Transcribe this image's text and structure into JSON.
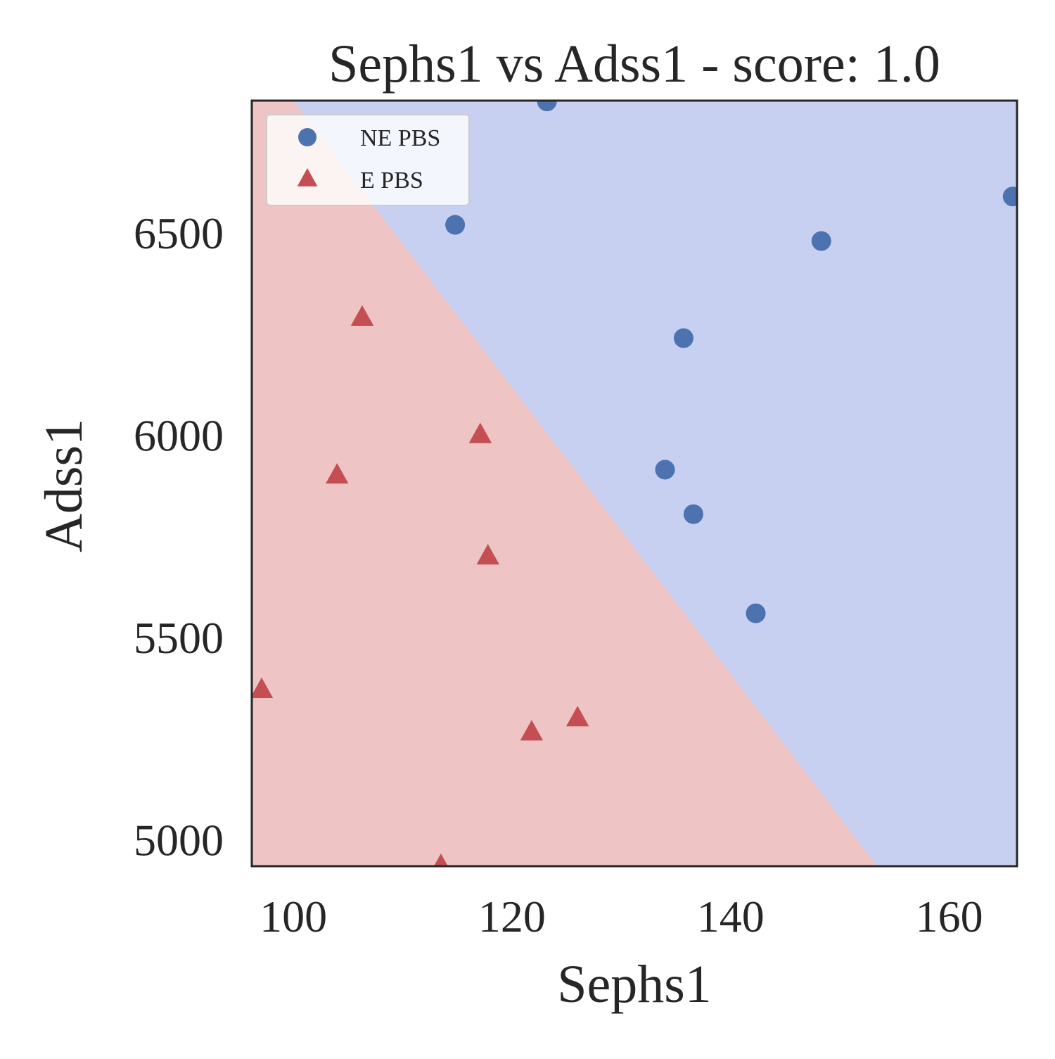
{
  "chart_data": {
    "type": "scatter",
    "title": "Sephs1 vs Adss1 - score: 1.0",
    "xlabel": "Sephs1",
    "ylabel": "Adss1",
    "xlim": [
      96.2,
      166.2
    ],
    "ylim": [
      4935,
      6827
    ],
    "xticks": [
      100,
      120,
      140,
      160
    ],
    "yticks": [
      5000,
      5500,
      6000,
      6500
    ],
    "grid": false,
    "legend_position": "top-left",
    "decision_boundary": {
      "points": [
        [
          100,
          6827
        ],
        [
          153.4,
          4935
        ]
      ],
      "positive_region_color": "#c8d0f2",
      "negative_region_color": "#eec4c4"
    },
    "series": [
      {
        "name": "NE PBS",
        "marker": "circle",
        "color": "#4c72b0",
        "points": [
          [
            123.2,
            6825
          ],
          [
            114.8,
            6520
          ],
          [
            148.3,
            6480
          ],
          [
            165.8,
            6590
          ],
          [
            135.7,
            6240
          ],
          [
            134.0,
            5915
          ],
          [
            136.6,
            5805
          ],
          [
            142.3,
            5560
          ]
        ]
      },
      {
        "name": "E PBS",
        "marker": "triangle",
        "color": "#c44e52",
        "points": [
          [
            106.3,
            6290
          ],
          [
            117.1,
            6000
          ],
          [
            104.0,
            5900
          ],
          [
            117.8,
            5700
          ],
          [
            97.1,
            5370
          ],
          [
            126.0,
            5300
          ],
          [
            121.8,
            5265
          ],
          [
            113.5,
            4935
          ]
        ]
      }
    ]
  }
}
